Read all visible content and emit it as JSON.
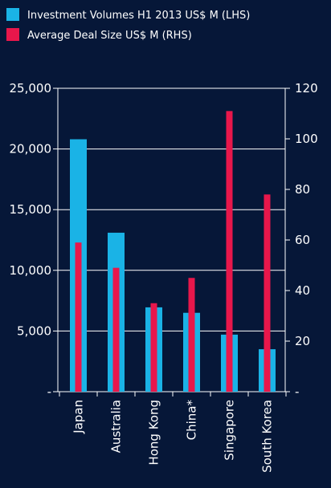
{
  "chart_data": {
    "type": "bar",
    "categories": [
      "Japan",
      "Australia",
      "Hong Kong",
      "China*",
      "Singapore",
      "South Korea"
    ],
    "series": [
      {
        "name": "Investment Volumes H1 2013 US$ M (LHS)",
        "axis": "left",
        "color": "#1ab3e6",
        "values": [
          20800,
          13100,
          6950,
          6500,
          4700,
          3500
        ]
      },
      {
        "name": "Average Deal Size US$ M (RHS)",
        "axis": "right",
        "color": "#e8174b",
        "values": [
          59,
          49,
          35,
          45,
          111,
          78
        ]
      }
    ],
    "left_axis": {
      "min": 0,
      "max": 25000,
      "ticks": [
        {
          "value": 0,
          "label": "-"
        },
        {
          "value": 5000,
          "label": "5,000"
        },
        {
          "value": 10000,
          "label": "10,000"
        },
        {
          "value": 15000,
          "label": "15,000"
        },
        {
          "value": 20000,
          "label": "20,000"
        },
        {
          "value": 25000,
          "label": "25,000"
        }
      ]
    },
    "right_axis": {
      "min": 0,
      "max": 120,
      "ticks": [
        {
          "value": 0,
          "label": "-"
        },
        {
          "value": 20,
          "label": "20"
        },
        {
          "value": 40,
          "label": "40"
        },
        {
          "value": 60,
          "label": "60"
        },
        {
          "value": 80,
          "label": "80"
        },
        {
          "value": 100,
          "label": "100"
        },
        {
          "value": 120,
          "label": "120"
        }
      ]
    },
    "grid": true,
    "legend_position": "top-left"
  }
}
